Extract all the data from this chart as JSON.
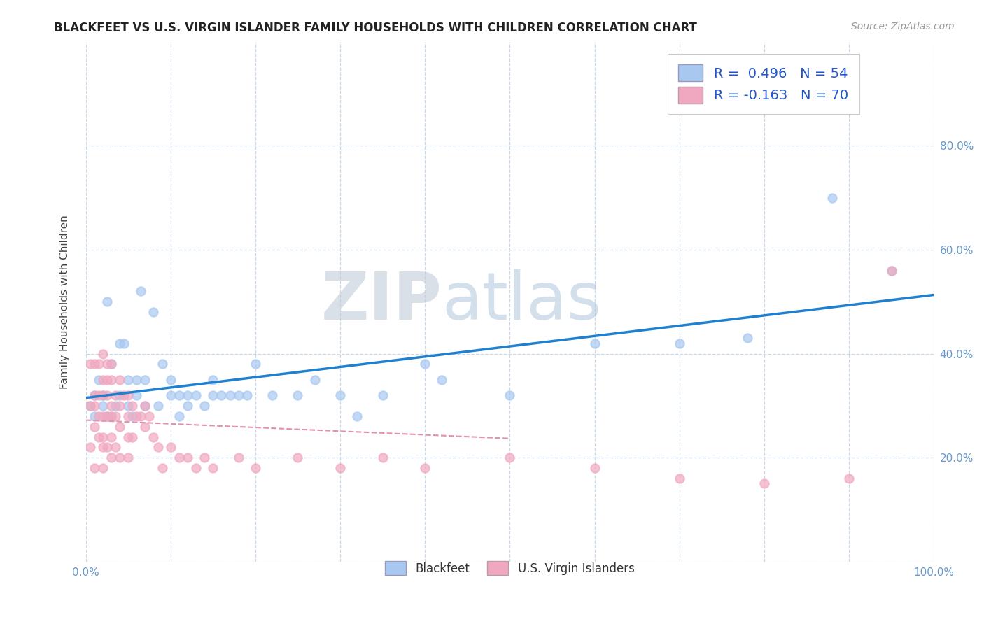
{
  "title": "BLACKFEET VS U.S. VIRGIN ISLANDER FAMILY HOUSEHOLDS WITH CHILDREN CORRELATION CHART",
  "source": "Source: ZipAtlas.com",
  "ylabel": "Family Households with Children",
  "r_blackfeet": "0.496",
  "n_blackfeet": "54",
  "r_virgin": "-0.163",
  "n_virgin": "70",
  "background_color": "#ffffff",
  "scatter_blue": "#a8c8f0",
  "scatter_pink": "#f0a8c0",
  "line_blue": "#2080d0",
  "line_pink": "#e090b0",
  "watermark_zip_color": "#c8d4e0",
  "watermark_atlas_color": "#b8cce0",
  "xlim": [
    0,
    1.0
  ],
  "ylim": [
    0,
    1.0
  ],
  "blackfeet_x": [
    0.005,
    0.01,
    0.01,
    0.015,
    0.02,
    0.02,
    0.025,
    0.025,
    0.03,
    0.03,
    0.035,
    0.04,
    0.04,
    0.045,
    0.05,
    0.05,
    0.055,
    0.06,
    0.06,
    0.065,
    0.07,
    0.07,
    0.08,
    0.085,
    0.09,
    0.1,
    0.1,
    0.11,
    0.11,
    0.12,
    0.12,
    0.13,
    0.14,
    0.15,
    0.15,
    0.16,
    0.17,
    0.18,
    0.19,
    0.2,
    0.22,
    0.25,
    0.27,
    0.3,
    0.32,
    0.35,
    0.4,
    0.42,
    0.5,
    0.6,
    0.7,
    0.78,
    0.88,
    0.95
  ],
  "blackfeet_y": [
    0.3,
    0.32,
    0.28,
    0.35,
    0.3,
    0.32,
    0.28,
    0.5,
    0.28,
    0.38,
    0.3,
    0.42,
    0.32,
    0.42,
    0.3,
    0.35,
    0.28,
    0.32,
    0.35,
    0.52,
    0.3,
    0.35,
    0.48,
    0.3,
    0.38,
    0.32,
    0.35,
    0.32,
    0.28,
    0.32,
    0.3,
    0.32,
    0.3,
    0.32,
    0.35,
    0.32,
    0.32,
    0.32,
    0.32,
    0.38,
    0.32,
    0.32,
    0.35,
    0.32,
    0.28,
    0.32,
    0.38,
    0.35,
    0.32,
    0.42,
    0.42,
    0.43,
    0.7,
    0.56
  ],
  "virgin_x": [
    0.005,
    0.005,
    0.005,
    0.01,
    0.01,
    0.01,
    0.01,
    0.01,
    0.015,
    0.015,
    0.015,
    0.015,
    0.02,
    0.02,
    0.02,
    0.02,
    0.02,
    0.02,
    0.02,
    0.025,
    0.025,
    0.025,
    0.025,
    0.025,
    0.03,
    0.03,
    0.03,
    0.03,
    0.03,
    0.03,
    0.035,
    0.035,
    0.035,
    0.04,
    0.04,
    0.04,
    0.04,
    0.045,
    0.05,
    0.05,
    0.05,
    0.05,
    0.055,
    0.055,
    0.06,
    0.065,
    0.07,
    0.07,
    0.075,
    0.08,
    0.085,
    0.09,
    0.1,
    0.11,
    0.12,
    0.13,
    0.14,
    0.15,
    0.18,
    0.2,
    0.25,
    0.3,
    0.35,
    0.4,
    0.5,
    0.6,
    0.7,
    0.8,
    0.9,
    0.95
  ],
  "virgin_y": [
    0.38,
    0.3,
    0.22,
    0.38,
    0.32,
    0.3,
    0.26,
    0.18,
    0.38,
    0.32,
    0.28,
    0.24,
    0.4,
    0.35,
    0.32,
    0.28,
    0.24,
    0.22,
    0.18,
    0.38,
    0.35,
    0.32,
    0.28,
    0.22,
    0.38,
    0.35,
    0.3,
    0.28,
    0.24,
    0.2,
    0.32,
    0.28,
    0.22,
    0.35,
    0.3,
    0.26,
    0.2,
    0.32,
    0.32,
    0.28,
    0.24,
    0.2,
    0.3,
    0.24,
    0.28,
    0.28,
    0.3,
    0.26,
    0.28,
    0.24,
    0.22,
    0.18,
    0.22,
    0.2,
    0.2,
    0.18,
    0.2,
    0.18,
    0.2,
    0.18,
    0.2,
    0.18,
    0.2,
    0.18,
    0.2,
    0.18,
    0.16,
    0.15,
    0.16,
    0.56
  ]
}
